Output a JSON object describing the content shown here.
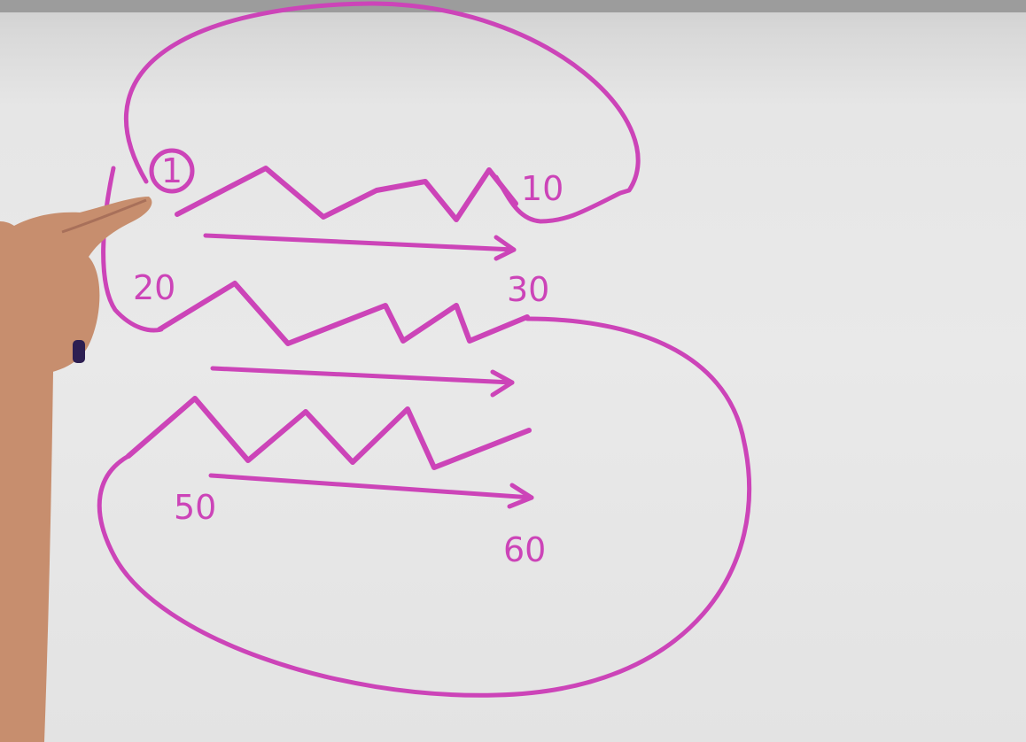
{
  "scene": "whiteboard-sketch",
  "marker_color": "#cc44b8",
  "skin_color": "#c78e6e",
  "labels": {
    "start": "1",
    "ten": "10",
    "twenty": "20",
    "thirty": "30",
    "fifty": "50",
    "sixty": "60"
  }
}
